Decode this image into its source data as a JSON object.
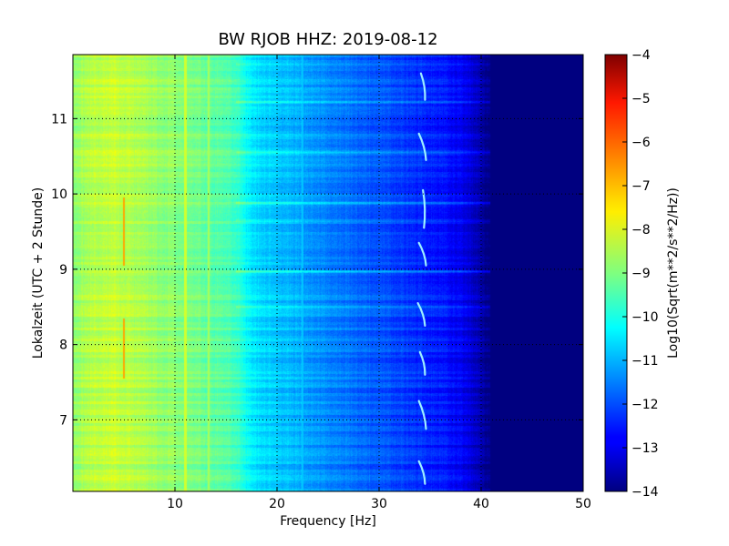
{
  "chart_data": {
    "type": "heatmap",
    "title": "BW RJOB HHZ: 2019-08-12",
    "xlabel": "Frequency [Hz]",
    "ylabel": "Lokalzeit (UTC + 2 Stunde)",
    "xlim": [
      0,
      50
    ],
    "ylim": [
      11.85,
      6.05
    ],
    "x_ticks": [
      {
        "value": 10,
        "label": "10"
      },
      {
        "value": 20,
        "label": "20"
      },
      {
        "value": 30,
        "label": "30"
      },
      {
        "value": 40,
        "label": "40"
      },
      {
        "value": 50,
        "label": "50"
      }
    ],
    "y_ticks": [
      {
        "value": 7,
        "label": "7"
      },
      {
        "value": 8,
        "label": "8"
      },
      {
        "value": 9,
        "label": "9"
      },
      {
        "value": 10,
        "label": "10"
      },
      {
        "value": 11,
        "label": "11"
      }
    ],
    "grid": true,
    "colormap": "jet",
    "colorbar": {
      "label": "Log10(Sqrt(m**2/s**2/Hz))",
      "range": [
        -14,
        -4
      ],
      "ticks": [
        {
          "value": -4,
          "label": "−4"
        },
        {
          "value": -5,
          "label": "−5"
        },
        {
          "value": -6,
          "label": "−6"
        },
        {
          "value": -7,
          "label": "−7"
        },
        {
          "value": -8,
          "label": "−8"
        },
        {
          "value": -9,
          "label": "−9"
        },
        {
          "value": -10,
          "label": "−10"
        },
        {
          "value": -11,
          "label": "−11"
        },
        {
          "value": -12,
          "label": "−12"
        },
        {
          "value": -13,
          "label": "−13"
        },
        {
          "value": -14,
          "label": "−14"
        }
      ]
    },
    "spectral_profile": {
      "frequency_hz": [
        0,
        2,
        4,
        6,
        8,
        10,
        12,
        14,
        16,
        17,
        18,
        20,
        22,
        24,
        26,
        28,
        30,
        32,
        34,
        36,
        38,
        39,
        40,
        41,
        45,
        50
      ],
      "log10_amplitude": [
        -8.8,
        -8.4,
        -8.3,
        -8.5,
        -8.7,
        -8.9,
        -9.1,
        -9.3,
        -9.6,
        -10.2,
        -10.5,
        -10.8,
        -11.0,
        -11.3,
        -11.5,
        -11.7,
        -11.9,
        -12.1,
        -12.3,
        -12.5,
        -12.8,
        -13.1,
        -13.6,
        -14.0,
        -14.0,
        -14.0
      ]
    },
    "features": [
      {
        "kind": "line",
        "frequency_hz": 5.0,
        "time_start": 7.55,
        "time_end": 8.35,
        "log10_amplitude": -6.9
      },
      {
        "kind": "line",
        "frequency_hz": 5.0,
        "time_start": 9.05,
        "time_end": 9.95,
        "log10_amplitude": -6.9
      },
      {
        "kind": "line",
        "frequency_hz": 11.0,
        "time_start": 6.05,
        "time_end": 11.85,
        "log10_amplitude": -8.2
      },
      {
        "kind": "line",
        "frequency_hz": 13.3,
        "time_start": 6.05,
        "time_end": 11.85,
        "log10_amplitude": -8.6
      },
      {
        "kind": "line",
        "frequency_hz": 16.5,
        "time_start": 6.05,
        "time_end": 11.85,
        "log10_amplitude": -10.0
      },
      {
        "kind": "line",
        "frequency_hz": 22.5,
        "time_start": 6.05,
        "time_end": 11.85,
        "log10_amplitude": -10.8
      }
    ],
    "sweeps": [
      {
        "time_start": 6.15,
        "time_end": 6.45,
        "frequency_start": 34.5,
        "frequency_end": 33.9
      },
      {
        "time_start": 6.88,
        "time_end": 7.25,
        "frequency_start": 34.6,
        "frequency_end": 33.9
      },
      {
        "time_start": 7.6,
        "time_end": 7.9,
        "frequency_start": 34.5,
        "frequency_end": 34.0
      },
      {
        "time_start": 8.25,
        "time_end": 8.55,
        "frequency_start": 34.5,
        "frequency_end": 33.8
      },
      {
        "time_start": 9.05,
        "time_end": 9.35,
        "frequency_start": 34.6,
        "frequency_end": 33.9
      },
      {
        "time_start": 9.55,
        "time_end": 10.05,
        "frequency_start": 34.4,
        "frequency_end": 34.3
      },
      {
        "time_start": 10.45,
        "time_end": 10.8,
        "frequency_start": 34.6,
        "frequency_end": 33.9
      },
      {
        "time_start": 11.25,
        "time_end": 11.6,
        "frequency_start": 34.5,
        "frequency_end": 34.1
      }
    ],
    "bands": [
      {
        "time": 8.5,
        "log10_shift": 0.6
      },
      {
        "time": 8.97,
        "log10_shift": 0.9
      },
      {
        "time": 9.65,
        "log10_shift": 0.6
      },
      {
        "time": 9.88,
        "log10_shift": 0.8
      },
      {
        "time": 10.55,
        "log10_shift": 0.5
      },
      {
        "time": 11.22,
        "log10_shift": 0.8
      },
      {
        "time": 11.72,
        "log10_shift": 0.5
      }
    ]
  }
}
